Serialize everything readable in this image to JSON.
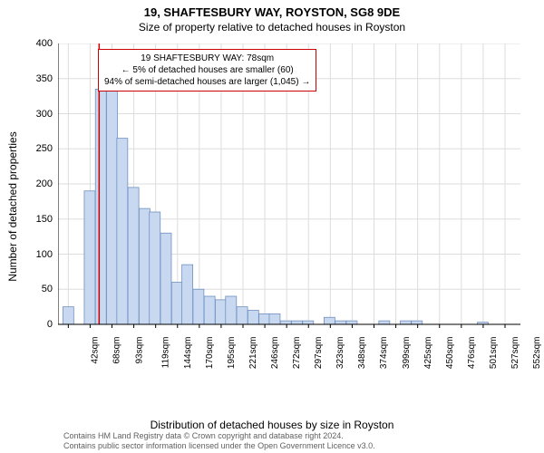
{
  "title_main": "19, SHAFTESBURY WAY, ROYSTON, SG8 9DE",
  "title_sub": "Size of property relative to detached houses in Royston",
  "y_label": "Number of detached properties",
  "x_label": "Distribution of detached houses by size in Royston",
  "credits_line1": "Contains HM Land Registry data © Crown copyright and database right 2024.",
  "credits_line2": "Contains public sector information licensed under the Open Government Licence v3.0.",
  "annotation": {
    "line1": "19 SHAFTESBURY WAY: 78sqm",
    "line2": "← 5% of detached houses are smaller (60)",
    "line3": "94% of semi-detached houses are larger (1,045) →"
  },
  "chart": {
    "type": "histogram",
    "ylim": [
      0,
      400
    ],
    "ytick_step": 50,
    "xtick_start": 42,
    "xtick_step": 25.5,
    "xtick_count": 21,
    "xtick_suffix": "sqm",
    "x_min": 30,
    "x_max": 570,
    "bars": [
      {
        "center": 42,
        "value": 25
      },
      {
        "center": 55,
        "value": 0
      },
      {
        "center": 67,
        "value": 190
      },
      {
        "center": 80,
        "value": 335
      },
      {
        "center": 93,
        "value": 335
      },
      {
        "center": 105,
        "value": 265
      },
      {
        "center": 118,
        "value": 195
      },
      {
        "center": 131,
        "value": 165
      },
      {
        "center": 143,
        "value": 160
      },
      {
        "center": 156,
        "value": 130
      },
      {
        "center": 169,
        "value": 60
      },
      {
        "center": 181,
        "value": 85
      },
      {
        "center": 194,
        "value": 50
      },
      {
        "center": 207,
        "value": 40
      },
      {
        "center": 220,
        "value": 35
      },
      {
        "center": 232,
        "value": 40
      },
      {
        "center": 245,
        "value": 25
      },
      {
        "center": 258,
        "value": 20
      },
      {
        "center": 271,
        "value": 15
      },
      {
        "center": 283,
        "value": 15
      },
      {
        "center": 296,
        "value": 5
      },
      {
        "center": 309,
        "value": 5
      },
      {
        "center": 322,
        "value": 5
      },
      {
        "center": 334,
        "value": 0
      },
      {
        "center": 347,
        "value": 10
      },
      {
        "center": 360,
        "value": 5
      },
      {
        "center": 373,
        "value": 5
      },
      {
        "center": 385,
        "value": 0
      },
      {
        "center": 398,
        "value": 0
      },
      {
        "center": 411,
        "value": 5
      },
      {
        "center": 424,
        "value": 0
      },
      {
        "center": 436,
        "value": 5
      },
      {
        "center": 449,
        "value": 5
      },
      {
        "center": 526,
        "value": 3
      }
    ],
    "reference_line_x": 78,
    "reference_line_color": "#cc0000",
    "bar_fill": "#c8d8f0",
    "bar_stroke": "#7090c0",
    "grid_color": "#dddddd",
    "axis_color": "#000000",
    "background": "#ffffff",
    "bar_stroke_width": 0.8
  }
}
